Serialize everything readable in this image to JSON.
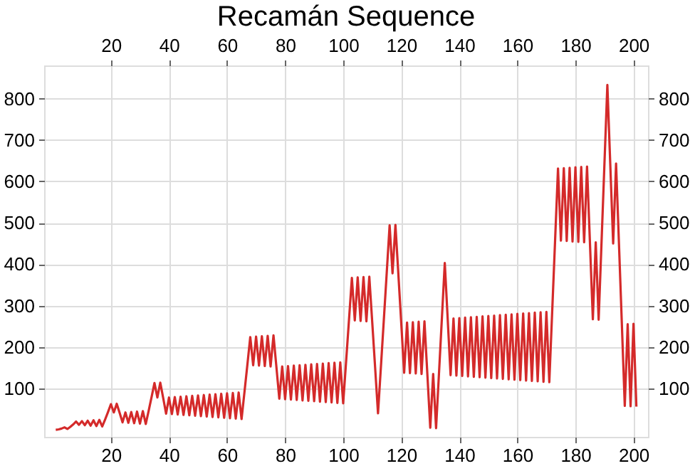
{
  "chart_data": {
    "type": "line",
    "title": "Recamán Sequence",
    "x": [
      1,
      2,
      3,
      4,
      5,
      6,
      7,
      8,
      9,
      10,
      11,
      12,
      13,
      14,
      15,
      16,
      17,
      18,
      19,
      20,
      21,
      22,
      23,
      24,
      25,
      26,
      27,
      28,
      29,
      30,
      31,
      32,
      33,
      34,
      35,
      36,
      37,
      38,
      39,
      40,
      41,
      42,
      43,
      44,
      45,
      46,
      47,
      48,
      49,
      50,
      51,
      52,
      53,
      54,
      55,
      56,
      57,
      58,
      59,
      60,
      61,
      62,
      63,
      64,
      65,
      66,
      67,
      68,
      69,
      70,
      71,
      72,
      73,
      74,
      75,
      76,
      77,
      78,
      79,
      80,
      81,
      82,
      83,
      84,
      85,
      86,
      87,
      88,
      89,
      90,
      91,
      92,
      93,
      94,
      95,
      96,
      97,
      98,
      99,
      100,
      101,
      102,
      103,
      104,
      105,
      106,
      107,
      108,
      109,
      110,
      111,
      112,
      113,
      114,
      115,
      116,
      117,
      118,
      119,
      120,
      121,
      122,
      123,
      124,
      125,
      126,
      127,
      128,
      129,
      130,
      131,
      132,
      133,
      134,
      135,
      136,
      137,
      138,
      139,
      140,
      141,
      142,
      143,
      144,
      145,
      146,
      147,
      148,
      149,
      150,
      151,
      152,
      153,
      154,
      155,
      156,
      157,
      158,
      159,
      160,
      161,
      162,
      163,
      164,
      165,
      166,
      167,
      168,
      169,
      170,
      171,
      172,
      173,
      174,
      175,
      176,
      177,
      178,
      179,
      180,
      181,
      182,
      183,
      184,
      185,
      186,
      187,
      188,
      189,
      190,
      191,
      192,
      193,
      194,
      195,
      196,
      197,
      198,
      199,
      200,
      201
    ],
    "series": [
      {
        "color": "#d42a2a",
        "values": [
          0,
          1,
          3,
          6,
          2,
          7,
          13,
          20,
          12,
          21,
          11,
          22,
          10,
          23,
          9,
          24,
          8,
          25,
          43,
          62,
          42,
          63,
          41,
          18,
          42,
          17,
          43,
          16,
          44,
          15,
          45,
          14,
          46,
          79,
          113,
          78,
          114,
          77,
          39,
          78,
          38,
          79,
          37,
          80,
          36,
          81,
          35,
          82,
          34,
          83,
          33,
          84,
          32,
          85,
          31,
          86,
          30,
          87,
          29,
          88,
          28,
          89,
          27,
          90,
          26,
          91,
          157,
          224,
          156,
          225,
          155,
          226,
          154,
          227,
          153,
          228,
          152,
          75,
          153,
          74,
          154,
          73,
          155,
          72,
          156,
          71,
          157,
          70,
          158,
          69,
          159,
          68,
          160,
          67,
          161,
          66,
          162,
          65,
          163,
          64,
          164,
          265,
          367,
          264,
          368,
          263,
          369,
          262,
          370,
          261,
          151,
          40,
          152,
          265,
          379,
          494,
          378,
          495,
          377,
          258,
          138,
          259,
          137,
          260,
          136,
          261,
          135,
          262,
          134,
          5,
          135,
          4,
          136,
          269,
          403,
          268,
          132,
          269,
          131,
          270,
          130,
          271,
          129,
          272,
          128,
          273,
          127,
          274,
          126,
          275,
          125,
          276,
          124,
          277,
          123,
          278,
          122,
          279,
          121,
          280,
          120,
          281,
          119,
          282,
          118,
          283,
          117,
          284,
          116,
          285,
          115,
          286,
          458,
          631,
          457,
          632,
          456,
          633,
          455,
          634,
          454,
          635,
          453,
          636,
          452,
          267,
          453,
          266,
          454,
          643,
          833,
          642,
          450,
          643,
          449,
          254,
          58,
          255,
          57,
          256,
          56
        ]
      }
    ],
    "xlim": [
      -3,
      205
    ],
    "xticks": [
      20,
      40,
      60,
      80,
      100,
      120,
      140,
      160,
      180,
      200
    ],
    "x2lim": [
      -3,
      205
    ],
    "x2ticks": [
      20,
      40,
      60,
      80,
      100,
      120,
      140,
      160,
      180,
      200
    ],
    "ylim": [
      -17,
      880
    ],
    "yticks": [
      100,
      200,
      300,
      400,
      500,
      600,
      700,
      800
    ],
    "y2lim": [
      -17,
      880
    ],
    "y2ticks": [
      100,
      200,
      300,
      400,
      500,
      600,
      700,
      800
    ],
    "grid": true,
    "marker": "none",
    "line_style": "solid"
  }
}
